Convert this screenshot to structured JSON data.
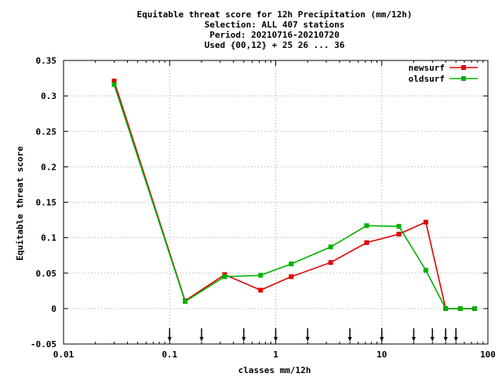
{
  "chart_data": {
    "type": "line",
    "title_lines": [
      "Equitable threat score  for 12h Precipitation (mm/12h)",
      "Selection: ALL    407 stations",
      "Period: 20210716-20210720",
      "Used {00,12} + 25 26 ... 36"
    ],
    "xlabel": "classes mm/12h",
    "ylabel": "Equitable threat score",
    "xscale": "log",
    "xlim": [
      0.01,
      100
    ],
    "ylim": [
      -0.05,
      0.35
    ],
    "xticks": [
      {
        "value": 0.01,
        "label": "0.01"
      },
      {
        "value": 0.1,
        "label": "0.1"
      },
      {
        "value": 1,
        "label": "1"
      },
      {
        "value": 10,
        "label": "10"
      },
      {
        "value": 100,
        "label": "100"
      }
    ],
    "yticks": [
      {
        "value": -0.05,
        "label": "-0.05"
      },
      {
        "value": 0,
        "label": "0"
      },
      {
        "value": 0.05,
        "label": "0.05"
      },
      {
        "value": 0.1,
        "label": "0.1"
      },
      {
        "value": 0.15,
        "label": "0.15"
      },
      {
        "value": 0.2,
        "label": "0.2"
      },
      {
        "value": 0.25,
        "label": "0.25"
      },
      {
        "value": 0.3,
        "label": "0.3"
      },
      {
        "value": 0.35,
        "label": "0.35"
      }
    ],
    "grid": true,
    "legend_position": "top-right",
    "class_thresholds": [
      0.1,
      0.2,
      0.5,
      1,
      2,
      5,
      10,
      20,
      30,
      40,
      50
    ],
    "series": [
      {
        "name": "newsurf",
        "color": "#e00000",
        "x": [
          0.03,
          0.14,
          0.33,
          0.72,
          1.4,
          3.3,
          7.2,
          14.5,
          26,
          40,
          55,
          75
        ],
        "y": [
          0.321,
          0.011,
          0.048,
          0.026,
          0.045,
          0.065,
          0.093,
          0.105,
          0.122,
          0.0,
          0.0,
          0.0
        ]
      },
      {
        "name": "oldsurf",
        "color": "#00b000",
        "x": [
          0.03,
          0.14,
          0.33,
          0.72,
          1.4,
          3.3,
          7.2,
          14.5,
          26,
          40,
          55,
          75
        ],
        "y": [
          0.316,
          0.01,
          0.045,
          0.047,
          0.063,
          0.087,
          0.117,
          0.116,
          0.054,
          0.0,
          0.0,
          0.0
        ]
      }
    ]
  }
}
